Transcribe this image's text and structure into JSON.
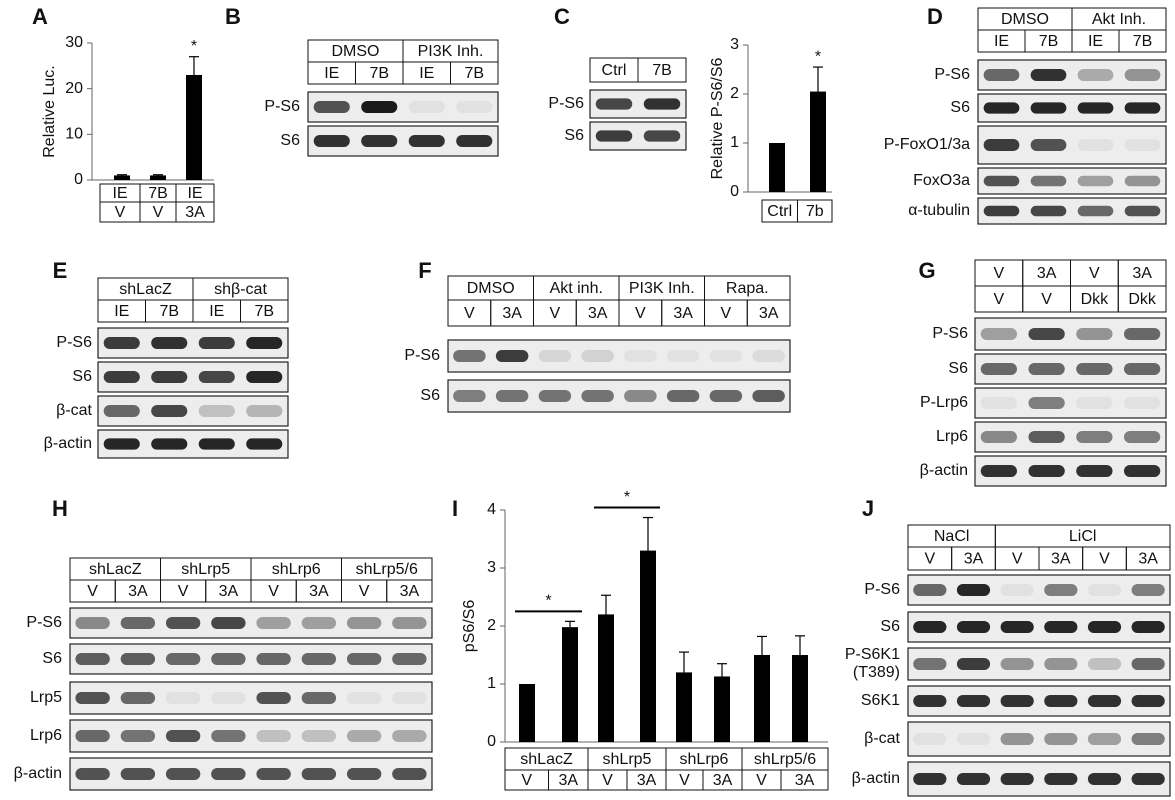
{
  "chart_data": [
    {
      "type": "bar",
      "panel_label": "A",
      "ylabel": "Relative Luc.",
      "category_rows": [
        [
          "IE",
          "7B",
          "IE"
        ],
        [
          "V",
          "V",
          "3A"
        ]
      ],
      "values": [
        1,
        1,
        23
      ],
      "errors": [
        0.15,
        0.15,
        4
      ],
      "color": "#000000",
      "ylim": [
        0,
        30
      ],
      "yticks": [
        0,
        10,
        20,
        30
      ],
      "annotations": [
        null,
        null,
        "*"
      ]
    },
    {
      "type": "bar",
      "ylabel": "Relative P-S6/S6",
      "category_rows": [
        [
          "Ctrl",
          "7b"
        ]
      ],
      "values": [
        1,
        2.05
      ],
      "errors": [
        0,
        0.5
      ],
      "color": "#000000",
      "ylim": [
        0,
        3
      ],
      "yticks": [
        0,
        1,
        2,
        3
      ],
      "annotations": [
        null,
        "*"
      ]
    },
    {
      "type": "bar",
      "panel_label": "I",
      "ylabel": "pS6/S6",
      "category_rows": [
        [
          "shLacZ",
          null,
          "shLrp5",
          null,
          "shLrp6",
          null,
          "shLrp5/6",
          null
        ],
        [
          "V",
          "3A",
          "V",
          "3A",
          "V",
          "3A",
          "V",
          "3A"
        ]
      ],
      "values": [
        1,
        1.98,
        2.2,
        3.3,
        1.2,
        1.13,
        1.5,
        1.5
      ],
      "errors": [
        0,
        0.1,
        0.33,
        0.57,
        0.35,
        0.22,
        0.32,
        0.33
      ],
      "color": "#000000",
      "ylim": [
        0,
        4
      ],
      "yticks": [
        0,
        1,
        2,
        3,
        4
      ],
      "pair_annotations": [
        "*",
        null,
        "*",
        null,
        null,
        null,
        null,
        null
      ]
    }
  ],
  "blots": [
    {
      "panel_label": "B",
      "header": [
        [
          "DMSO",
          null,
          "PI3K Inh.",
          null
        ],
        [
          "IE",
          "7B",
          "IE",
          "7B"
        ]
      ],
      "rows": [
        {
          "label": "P-S6",
          "bands": [
            0.7,
            0.95,
            0.05,
            0.05
          ]
        },
        {
          "label": "S6",
          "bands": [
            0.85,
            0.85,
            0.85,
            0.85
          ]
        }
      ]
    },
    {
      "panel_label": "C",
      "header": [
        [
          "Ctrl",
          "7B"
        ]
      ],
      "rows": [
        {
          "label": "P-S6",
          "bands": [
            0.75,
            0.85
          ]
        },
        {
          "label": "S6",
          "bands": [
            0.8,
            0.75
          ]
        }
      ]
    },
    {
      "panel_label": "D",
      "header": [
        [
          "DMSO",
          null,
          "Akt Inh.",
          null
        ],
        [
          "IE",
          "7B",
          "IE",
          "7B"
        ]
      ],
      "rows": [
        {
          "label": "P-S6",
          "bands": [
            0.6,
            0.85,
            0.3,
            0.4
          ]
        },
        {
          "label": "S6",
          "bands": [
            0.9,
            0.9,
            0.9,
            0.9
          ]
        },
        {
          "label": "P-FoxO1/3a",
          "bands": [
            0.8,
            0.7,
            0.05,
            0.05
          ]
        },
        {
          "label": "FoxO3a",
          "bands": [
            0.7,
            0.55,
            0.35,
            0.4
          ]
        },
        {
          "label": "α-tubulin",
          "bands": [
            0.8,
            0.75,
            0.6,
            0.7
          ]
        }
      ]
    },
    {
      "panel_label": "E",
      "header": [
        [
          "shLacZ",
          null,
          "shβ-cat",
          null
        ],
        [
          "IE",
          "7B",
          "IE",
          "7B"
        ]
      ],
      "rows": [
        {
          "label": "P-S6",
          "bands": [
            0.8,
            0.85,
            0.8,
            0.9
          ]
        },
        {
          "label": "S6",
          "bands": [
            0.8,
            0.8,
            0.75,
            0.9
          ]
        },
        {
          "label": "β-cat",
          "bands": [
            0.6,
            0.75,
            0.2,
            0.25
          ]
        },
        {
          "label": "β-actin",
          "bands": [
            0.9,
            0.9,
            0.9,
            0.9
          ]
        }
      ]
    },
    {
      "panel_label": "F",
      "header": [
        [
          "DMSO",
          null,
          "Akt inh.",
          null,
          "PI3K Inh.",
          null,
          "Rapa.",
          null
        ],
        [
          "V",
          "3A",
          "V",
          "3A",
          "V",
          "3A",
          "V",
          "3A"
        ]
      ],
      "rows": [
        {
          "label": "P-S6",
          "bands": [
            0.55,
            0.8,
            0.1,
            0.12,
            0.05,
            0.05,
            0.05,
            0.08
          ]
        },
        {
          "label": "S6",
          "bands": [
            0.5,
            0.55,
            0.55,
            0.55,
            0.45,
            0.6,
            0.6,
            0.65
          ]
        }
      ]
    },
    {
      "panel_label": "G",
      "header": [
        [
          "V",
          "3A",
          "V",
          "3A"
        ],
        [
          "V",
          "V",
          "Dkk",
          "Dkk"
        ]
      ],
      "rows": [
        {
          "label": "P-S6",
          "bands": [
            0.35,
            0.75,
            0.4,
            0.6
          ]
        },
        {
          "label": "S6",
          "bands": [
            0.6,
            0.6,
            0.6,
            0.6
          ]
        },
        {
          "label": "P-Lrp6",
          "bands": [
            0.05,
            0.5,
            0.05,
            0.05
          ]
        },
        {
          "label": "Lrp6",
          "bands": [
            0.45,
            0.65,
            0.5,
            0.5
          ]
        },
        {
          "label": "β-actin",
          "bands": [
            0.85,
            0.85,
            0.85,
            0.85
          ]
        }
      ]
    },
    {
      "panel_label": "H",
      "header": [
        [
          "shLacZ",
          null,
          "shLrp5",
          null,
          "shLrp6",
          null,
          "shLrp5/6",
          null
        ],
        [
          "V",
          "3A",
          "V",
          "3A",
          "V",
          "3A",
          "V",
          "3A"
        ]
      ],
      "rows": [
        {
          "label": "P-S6",
          "bands": [
            0.45,
            0.6,
            0.7,
            0.75,
            0.35,
            0.35,
            0.4,
            0.4
          ]
        },
        {
          "label": "S6",
          "bands": [
            0.65,
            0.65,
            0.6,
            0.6,
            0.6,
            0.6,
            0.6,
            0.6
          ]
        },
        {
          "label": "Lrp5",
          "bands": [
            0.7,
            0.6,
            0.05,
            0.05,
            0.7,
            0.6,
            0.05,
            0.05
          ]
        },
        {
          "label": "Lrp6",
          "bands": [
            0.6,
            0.55,
            0.7,
            0.55,
            0.2,
            0.2,
            0.3,
            0.3
          ]
        },
        {
          "label": "β-actin",
          "bands": [
            0.7,
            0.7,
            0.7,
            0.7,
            0.7,
            0.7,
            0.7,
            0.7
          ]
        }
      ]
    },
    {
      "panel_label": "J",
      "header": [
        [
          "NaCl",
          null,
          "LiCl",
          null,
          null,
          null
        ],
        [
          "V",
          "3A",
          "V",
          "3A",
          "V",
          "3A"
        ]
      ],
      "rows": [
        {
          "label": "P-S6",
          "bands": [
            0.6,
            0.9,
            0.05,
            0.5,
            0.05,
            0.5
          ]
        },
        {
          "label": "S6",
          "bands": [
            0.9,
            0.9,
            0.9,
            0.9,
            0.9,
            0.9
          ]
        },
        {
          "label": [
            "P-S6K1",
            "(T389)"
          ],
          "bands": [
            0.55,
            0.8,
            0.4,
            0.4,
            0.2,
            0.6
          ]
        },
        {
          "label": "S6K1",
          "bands": [
            0.85,
            0.85,
            0.85,
            0.85,
            0.85,
            0.85
          ]
        },
        {
          "label": "β-cat",
          "bands": [
            0.05,
            0.05,
            0.4,
            0.4,
            0.35,
            0.5
          ]
        },
        {
          "label": "β-actin",
          "bands": [
            0.85,
            0.85,
            0.85,
            0.85,
            0.85,
            0.85
          ]
        }
      ]
    }
  ]
}
